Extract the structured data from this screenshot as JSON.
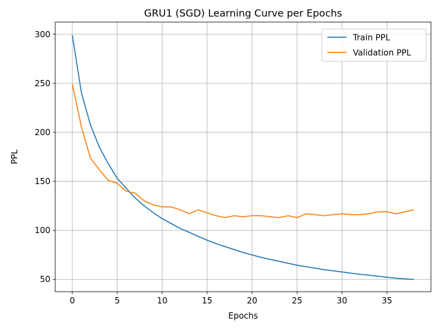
{
  "chart_data": {
    "type": "line",
    "title": "GRU1 (SGD) Learning Curve per Epochs",
    "xlabel": "Epochs",
    "ylabel": "PPL",
    "xlim": [
      -1.9,
      39.9
    ],
    "ylim": [
      37.5,
      312.5
    ],
    "xticks": [
      0,
      5,
      10,
      15,
      20,
      25,
      30,
      35
    ],
    "yticks": [
      50,
      100,
      150,
      200,
      250,
      300
    ],
    "grid": true,
    "legend_position": "top-right",
    "x": [
      0,
      1,
      2,
      3,
      4,
      5,
      6,
      7,
      8,
      9,
      10,
      11,
      12,
      13,
      14,
      15,
      16,
      17,
      18,
      19,
      20,
      21,
      22,
      23,
      24,
      25,
      26,
      27,
      28,
      29,
      30,
      31,
      32,
      33,
      34,
      35,
      36,
      37,
      38
    ],
    "series": [
      {
        "name": "Train PPL",
        "color": "#1f77b4",
        "values": [
          299,
          241,
          208,
          185,
          168,
          153,
          143,
          133,
          125,
          118,
          112,
          107,
          102,
          98,
          94,
          90,
          86.5,
          83.5,
          80.5,
          77.5,
          75,
          72.5,
          70.5,
          68.5,
          66.5,
          64.5,
          63,
          61.5,
          60,
          58.8,
          57.6,
          56.4,
          55.3,
          54.3,
          53.3,
          52.2,
          51.3,
          50.6,
          50
        ]
      },
      {
        "name": "Validation PPL",
        "color": "#ff7f0e",
        "values": [
          249,
          206,
          174,
          162,
          151,
          148,
          140,
          138,
          130,
          126,
          124,
          124,
          121,
          117,
          121,
          118,
          115,
          113,
          115,
          114,
          115,
          115,
          114,
          113,
          115,
          113,
          117,
          116,
          115,
          116,
          117,
          116,
          116,
          117,
          119,
          119,
          117,
          119,
          121
        ]
      }
    ]
  }
}
